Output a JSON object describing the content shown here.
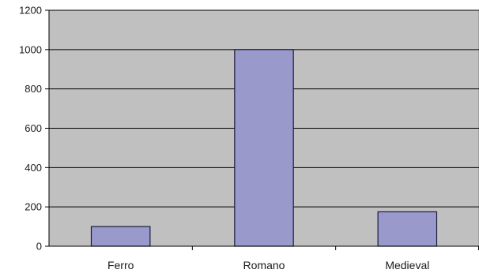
{
  "chart_data": {
    "type": "bar",
    "title": "",
    "xlabel": "",
    "ylabel": "",
    "categories": [
      "Ferro",
      "Romano",
      "Medieval"
    ],
    "values": [
      100,
      1000,
      175
    ],
    "ylim": [
      0,
      1200
    ],
    "yticks": [
      0,
      200,
      400,
      600,
      800,
      1000,
      1200
    ],
    "grid": true,
    "legend": "none",
    "colors": {
      "plot_background": "#c0c0c0",
      "bar_fill": "#9999cc",
      "bar_stroke": "#1a1a3a",
      "gridline": "#000000"
    }
  }
}
